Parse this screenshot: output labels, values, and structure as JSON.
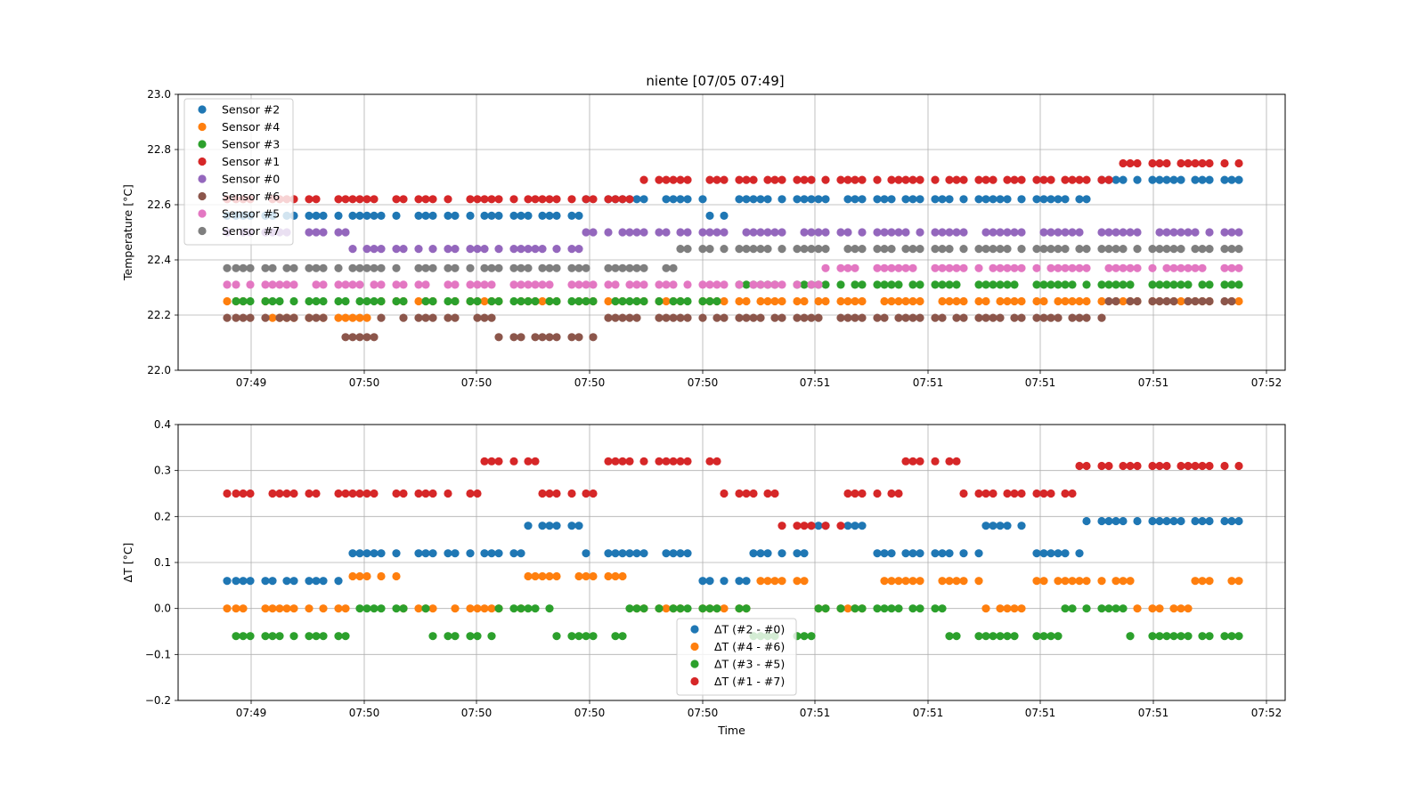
{
  "chart_data": [
    {
      "type": "scatter",
      "title": "niente [07/05 07:49]",
      "xlabel": "",
      "ylabel": "Temperature [°C]",
      "ylim": [
        22.0,
        23.0
      ],
      "yticks": [
        "22.0",
        "22.2",
        "22.4",
        "22.6",
        "22.8",
        "23.0"
      ],
      "xticks": [
        "07:49",
        "07:50",
        "07:50",
        "07:50",
        "07:50",
        "07:51",
        "07:51",
        "07:51",
        "07:51",
        "07:52"
      ],
      "grid": true,
      "legend_position": "upper-left",
      "series": [
        {
          "name": "Sensor #2",
          "color": "#1f77b4",
          "base": 22.56,
          "alt": [
            22.62,
            22.56
          ],
          "values": [
            22.56,
            22.56,
            22.56,
            22.56,
            22.56,
            22.56,
            22.56,
            22.56,
            22.56,
            22.56,
            22.56,
            22.56,
            22.56,
            22.56,
            22.56,
            22.56,
            22.56,
            22.56,
            22.56,
            22.56,
            22.56,
            22.56,
            22.56,
            22.56,
            22.56,
            22.56,
            22.56,
            22.62,
            22.62,
            22.62,
            22.62,
            22.62,
            22.62,
            22.62,
            22.62,
            22.62,
            22.62,
            22.56,
            22.56,
            22.62,
            22.62,
            22.62,
            22.56,
            22.62,
            22.62,
            22.62,
            22.62,
            22.62,
            22.62,
            22.62,
            22.62,
            22.62,
            22.62,
            22.62,
            22.62,
            22.62,
            22.62,
            22.62,
            22.62,
            22.62,
            22.62,
            22.62,
            22.62,
            22.62,
            22.62,
            22.62,
            22.62,
            22.62,
            22.69,
            22.69,
            22.69,
            22.69,
            22.69,
            22.69,
            22.69,
            22.69,
            22.69,
            22.69,
            22.69,
            22.69,
            22.69
          ]
        },
        {
          "name": "Sensor #4",
          "color": "#ff7f0e",
          "values": [
            22.25,
            22.19,
            22.19,
            22.19,
            22.25,
            22.25,
            22.25,
            22.25,
            22.25,
            22.25,
            22.25,
            22.25,
            22.25,
            22.25,
            22.25,
            22.25,
            22.25,
            22.25,
            22.25,
            22.25,
            22.25,
            22.25,
            22.25,
            22.25,
            22.25,
            22.25,
            22.25,
            22.25
          ]
        },
        {
          "name": "Sensor #3",
          "color": "#2ca02c",
          "values": [
            22.25,
            22.25,
            22.25,
            22.25,
            22.25,
            22.25,
            22.25,
            22.25,
            22.25,
            22.25,
            22.25,
            22.25,
            22.25,
            22.25,
            22.31,
            22.31,
            22.31,
            22.31,
            22.31,
            22.31,
            22.31,
            22.31,
            22.31,
            22.31,
            22.31,
            22.31,
            22.31,
            22.31,
            22.31,
            22.31
          ]
        },
        {
          "name": "Sensor #1",
          "color": "#d62728",
          "values": [
            22.62,
            22.62,
            22.62,
            22.62,
            22.62,
            22.62,
            22.62,
            22.62,
            22.62,
            22.62,
            22.62,
            22.69,
            22.69,
            22.69,
            22.69,
            22.69,
            22.69,
            22.69,
            22.69,
            22.69,
            22.69,
            22.69,
            22.69,
            22.69,
            22.75,
            22.75,
            22.75,
            22.75
          ]
        },
        {
          "name": "Sensor #0",
          "color": "#9467bd",
          "values": [
            22.5,
            22.5,
            22.44,
            22.44,
            22.44,
            22.44,
            22.5,
            22.5,
            22.5,
            22.5,
            22.5,
            22.5,
            22.5,
            22.5,
            22.5,
            22.5,
            22.5,
            22.5
          ]
        },
        {
          "name": "Sensor #6",
          "color": "#8c564b",
          "values": [
            22.19,
            22.19,
            22.12,
            22.19,
            22.19,
            22.12,
            22.12,
            22.19,
            22.19,
            22.19,
            22.19,
            22.19,
            22.19,
            22.19,
            22.19,
            22.19,
            22.19,
            22.25,
            22.25,
            22.25
          ]
        },
        {
          "name": "Sensor #5",
          "color": "#e377c2",
          "values": [
            22.31,
            22.31,
            22.31,
            22.31,
            22.31,
            22.31,
            22.31,
            22.31,
            22.37,
            22.37,
            22.37,
            22.37,
            22.37,
            22.37
          ]
        },
        {
          "name": "Sensor #7",
          "color": "#7f7f7f",
          "values": [
            22.37,
            22.37,
            22.37,
            22.37,
            22.37,
            22.37,
            22.44,
            22.44,
            22.44,
            22.44,
            22.44,
            22.44,
            22.44,
            22.44
          ]
        }
      ]
    },
    {
      "type": "scatter",
      "title": "",
      "xlabel": "Time",
      "ylabel": "ΔT [°C]",
      "ylim": [
        -0.2,
        0.4
      ],
      "yticks": [
        "−0.2",
        "−0.1",
        "0.0",
        "0.1",
        "0.2",
        "0.3",
        "0.4"
      ],
      "xticks": [
        "07:49",
        "07:50",
        "07:50",
        "07:50",
        "07:50",
        "07:51",
        "07:51",
        "07:51",
        "07:51",
        "07:52"
      ],
      "grid": true,
      "legend_position": "lower-center",
      "series": [
        {
          "name": "ΔT (#2 - #0)",
          "color": "#1f77b4",
          "values": [
            0.06,
            0.06,
            0.12,
            0.12,
            0.12,
            0.18,
            0.12,
            0.12,
            0.06,
            0.12,
            0.18,
            0.12,
            0.12,
            0.18,
            0.12,
            0.19,
            0.19,
            0.19
          ]
        },
        {
          "name": "ΔT (#4 - #6)",
          "color": "#ff7f0e",
          "values": [
            0.0,
            0.0,
            0.07,
            0.0,
            0.0,
            0.07,
            0.07,
            0.0,
            0.0,
            0.06,
            0.0,
            0.06,
            0.06,
            0.0,
            0.06,
            0.06,
            0.0,
            0.06
          ]
        },
        {
          "name": "ΔT (#3 - #5)",
          "color": "#2ca02c",
          "values": [
            -0.06,
            -0.06,
            0.0,
            -0.06,
            0.0,
            -0.06,
            0.0,
            0.0,
            -0.06,
            0.0,
            0.0,
            -0.06,
            -0.06,
            0.0,
            -0.06,
            -0.06
          ]
        },
        {
          "name": "ΔT (#1 - #7)",
          "color": "#d62728",
          "values": [
            0.25,
            0.25,
            0.25,
            0.25,
            0.32,
            0.25,
            0.32,
            0.32,
            0.25,
            0.18,
            0.25,
            0.32,
            0.25,
            0.25,
            0.31,
            0.31,
            0.31
          ]
        }
      ]
    }
  ]
}
